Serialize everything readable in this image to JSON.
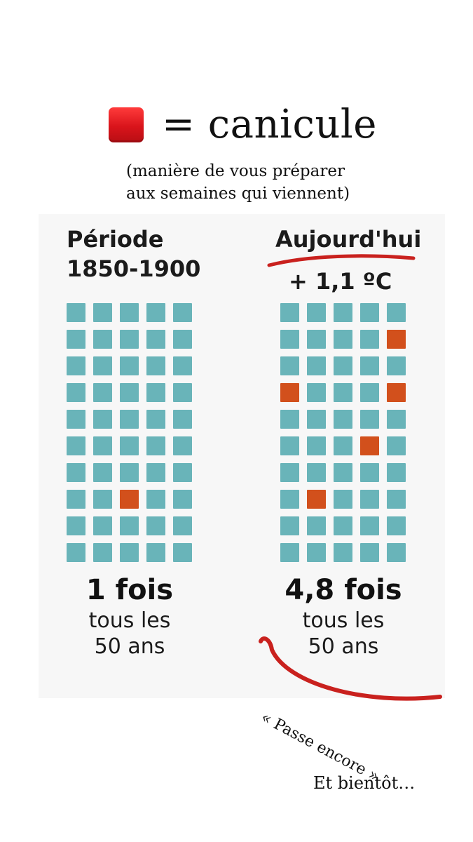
{
  "legend": {
    "symbol_text": "=",
    "label": "canicule",
    "swatch_color": "#d9141b",
    "icon": "red-square-icon"
  },
  "subtitle": {
    "line1": "(manière de vous préparer",
    "line2": "aux semaines qui viennent)"
  },
  "left": {
    "title_line1": "Période",
    "title_line2": "1850-1900",
    "count": "1 fois",
    "freq_line1": "tous les",
    "freq_line2": "50 ans",
    "grid_rows": 10,
    "grid_cols": 5,
    "hot_cells": [
      [
        7,
        2
      ]
    ]
  },
  "right": {
    "title": "Aujourd'hui",
    "temp": "+ 1,1 ºC",
    "count": "4,8 fois",
    "freq_line1": "tous les",
    "freq_line2": "50 ans",
    "grid_rows": 10,
    "grid_cols": 5,
    "hot_cells": [
      [
        1,
        4
      ],
      [
        3,
        0
      ],
      [
        3,
        4
      ],
      [
        5,
        3
      ],
      [
        7,
        1
      ]
    ]
  },
  "colors": {
    "normal_cell": "#69b4b9",
    "hot_cell": "#d2501c",
    "annotation_stroke": "#c9211e"
  },
  "annotation": "« Passe encore »",
  "footer": "Et bientôt…"
}
